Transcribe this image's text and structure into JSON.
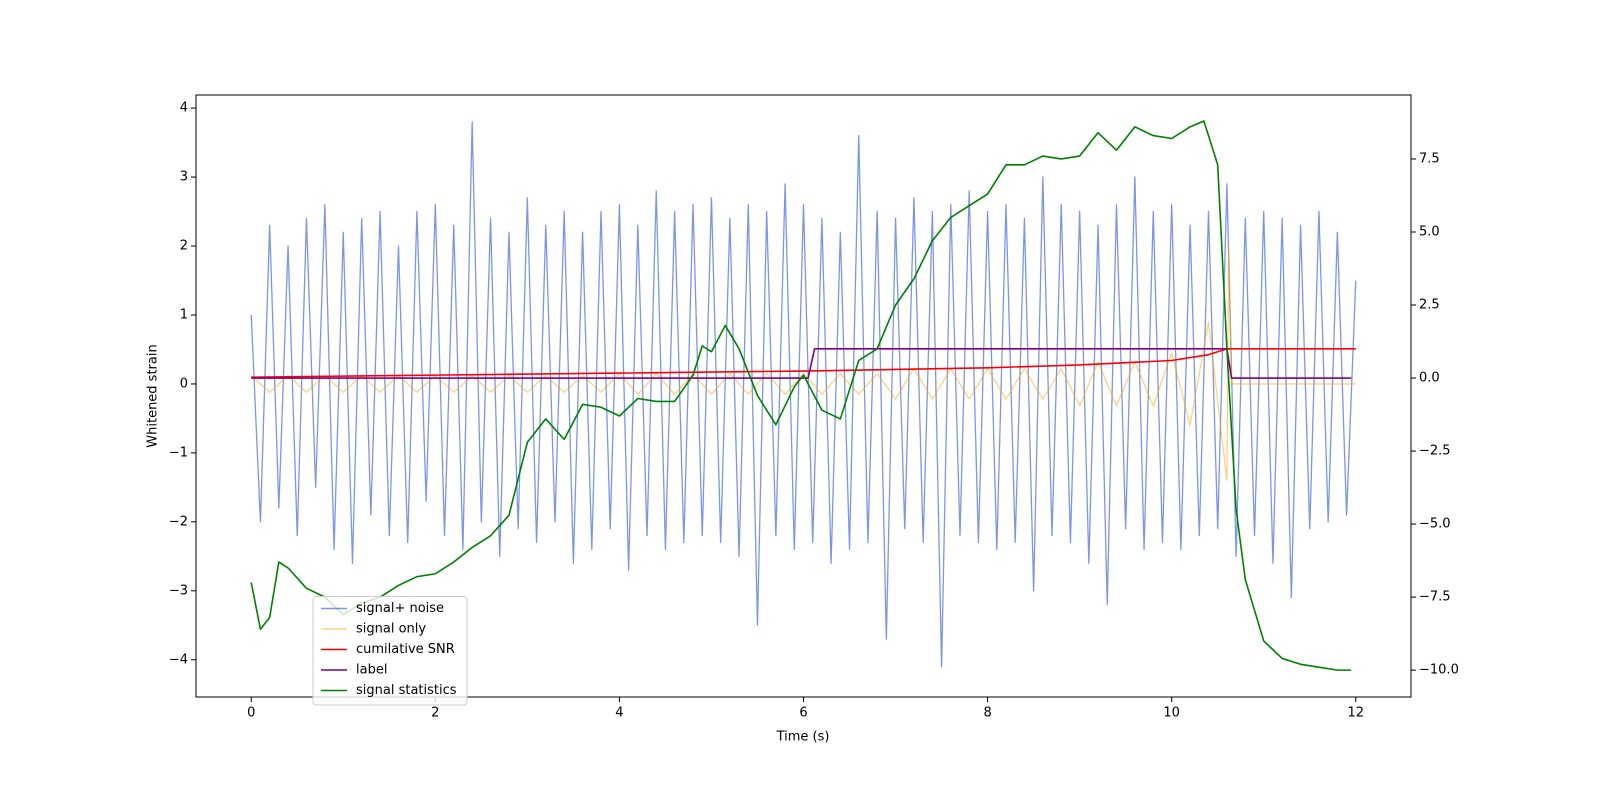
{
  "chart_data": {
    "type": "line",
    "xlabel": "Time (s)",
    "ylabel": "Whitened strain",
    "xlim": [
      -0.6,
      12.6
    ],
    "xticks": [
      0,
      2,
      4,
      6,
      8,
      10,
      12
    ],
    "ylim": [
      -4.54,
      4.19
    ],
    "yticks": [
      {
        "value": -4,
        "label": "−4"
      },
      {
        "value": -3,
        "label": "−3"
      },
      {
        "value": -2,
        "label": "−2"
      },
      {
        "value": -1,
        "label": "−1"
      },
      0,
      1,
      2,
      3,
      4
    ],
    "y2lim": [
      -10.92,
      9.69
    ],
    "y2ticks": [
      {
        "value": -10,
        "label": "−10.0"
      },
      {
        "value": -7.5,
        "label": "−7.5"
      },
      {
        "value": -5,
        "label": "−5.0"
      },
      {
        "value": -2.5,
        "label": "−2.5"
      },
      {
        "value": 0,
        "label": "0.0"
      },
      {
        "value": 2.5,
        "label": "2.5"
      },
      {
        "value": 5,
        "label": "5.0"
      },
      {
        "value": 7.5,
        "label": "7.5"
      }
    ],
    "legend": "lower left",
    "series": [
      {
        "name": "signal+ noise",
        "color": "#4169e1",
        "x": [
          0,
          0.1,
          0.2,
          0.3,
          0.4,
          0.5,
          0.6,
          0.7,
          0.8,
          0.9,
          1,
          1.1,
          1.2,
          1.3,
          1.4,
          1.5,
          1.6,
          1.7,
          1.8,
          1.9,
          2,
          2.1,
          2.2,
          2.3,
          2.4,
          2.5,
          2.6,
          2.7,
          2.8,
          2.9,
          3,
          3.1,
          3.2,
          3.3,
          3.4,
          3.5,
          3.6,
          3.7,
          3.8,
          3.9,
          4,
          4.1,
          4.2,
          4.3,
          4.4,
          4.5,
          4.6,
          4.7,
          4.8,
          4.9,
          5,
          5.1,
          5.2,
          5.3,
          5.4,
          5.5,
          5.6,
          5.7,
          5.8,
          5.9,
          6,
          6.1,
          6.2,
          6.3,
          6.4,
          6.5,
          6.6,
          6.7,
          6.8,
          6.9,
          7,
          7.1,
          7.2,
          7.3,
          7.4,
          7.5,
          7.6,
          7.7,
          7.8,
          7.9,
          8,
          8.1,
          8.2,
          8.3,
          8.4,
          8.5,
          8.6,
          8.7,
          8.8,
          8.9,
          9,
          9.1,
          9.2,
          9.3,
          9.4,
          9.5,
          9.6,
          9.7,
          9.8,
          9.9,
          10,
          10.1,
          10.2,
          10.3,
          10.4,
          10.5,
          10.6,
          10.7,
          10.8,
          10.9,
          11,
          11.1,
          11.2,
          11.3,
          11.4,
          11.5,
          11.6,
          11.7,
          11.8,
          11.9,
          12
        ],
        "values": [
          1.0,
          -2.0,
          2.3,
          -1.8,
          2.0,
          -2.2,
          2.4,
          -1.5,
          2.6,
          -2.4,
          2.2,
          -2.6,
          2.4,
          -1.9,
          2.5,
          -2.2,
          2.0,
          -2.3,
          2.5,
          -1.7,
          2.6,
          -2.2,
          2.3,
          -2.4,
          3.8,
          -2.0,
          2.4,
          -2.5,
          2.2,
          -2.1,
          2.7,
          -2.3,
          2.3,
          -2.0,
          2.5,
          -2.6,
          2.2,
          -2.4,
          2.5,
          -2.1,
          2.6,
          -2.7,
          2.3,
          -2.2,
          2.8,
          -2.4,
          2.5,
          -2.3,
          2.6,
          -2.2,
          2.7,
          -2.3,
          2.4,
          -2.5,
          2.6,
          -3.5,
          2.5,
          -2.2,
          2.9,
          -2.4,
          2.6,
          -2.3,
          2.4,
          -2.6,
          2.2,
          -2.4,
          3.6,
          -2.3,
          2.5,
          -3.7,
          2.4,
          -2.1,
          2.7,
          -2.3,
          2.5,
          -4.1,
          2.6,
          -2.2,
          2.8,
          -2.3,
          2.5,
          -2.4,
          2.6,
          -2.3,
          2.4,
          -3.0,
          3.0,
          -2.2,
          2.6,
          -2.3,
          2.5,
          -2.6,
          2.3,
          -3.2,
          2.6,
          -2.1,
          3.0,
          -2.4,
          2.5,
          -2.3,
          2.6,
          -2.4,
          2.3,
          -2.2,
          2.5,
          -2.1,
          2.9,
          -2.5,
          2.4,
          -2.2,
          2.5,
          -2.6,
          2.4,
          -3.1,
          2.3,
          -2.1,
          2.5,
          -2.0,
          2.2,
          -1.9,
          1.5
        ]
      },
      {
        "name": "signal only",
        "color": "#ffa500",
        "x": [
          0,
          0.2,
          0.4,
          0.6,
          0.8,
          1,
          1.2,
          1.4,
          1.6,
          1.8,
          2,
          2.2,
          2.4,
          2.6,
          2.8,
          3,
          3.2,
          3.4,
          3.6,
          3.8,
          4,
          4.2,
          4.4,
          4.6,
          4.8,
          5,
          5.2,
          5.4,
          5.6,
          5.8,
          6,
          6.2,
          6.4,
          6.6,
          6.8,
          7,
          7.2,
          7.4,
          7.6,
          7.8,
          8,
          8.2,
          8.4,
          8.6,
          8.8,
          9,
          9.2,
          9.4,
          9.6,
          9.8,
          10,
          10.2,
          10.4,
          10.6,
          10.62,
          10.65,
          12
        ],
        "values": [
          0.12,
          -0.12,
          0.12,
          -0.12,
          0.12,
          -0.12,
          0.12,
          -0.12,
          0.12,
          -0.12,
          0.12,
          -0.12,
          0.12,
          -0.12,
          0.12,
          -0.12,
          0.12,
          -0.12,
          0.12,
          -0.12,
          0.15,
          -0.15,
          0.15,
          -0.15,
          0.15,
          -0.15,
          0.15,
          -0.15,
          0.15,
          -0.15,
          0.15,
          -0.15,
          0.15,
          -0.15,
          0.15,
          -0.22,
          0.22,
          -0.22,
          0.22,
          -0.22,
          0.22,
          -0.22,
          0.22,
          -0.22,
          0.22,
          -0.32,
          0.32,
          -0.32,
          0.32,
          -0.32,
          0.45,
          -0.6,
          0.9,
          -1.4,
          2.0,
          0,
          0
        ]
      },
      {
        "name": "cumilative SNR",
        "color": "#ff0000",
        "axis": "y2",
        "x": [
          0,
          2,
          4,
          6,
          8,
          9,
          10,
          10.4,
          10.6,
          10.65,
          12
        ],
        "values": [
          0.03,
          0.1,
          0.17,
          0.24,
          0.35,
          0.45,
          0.6,
          0.8,
          1.0,
          1.0,
          1.0
        ]
      },
      {
        "name": "label",
        "color": "#800080",
        "axis": "y2",
        "x": [
          0,
          6.05,
          6.12,
          10.6,
          10.65,
          11.95
        ],
        "values": [
          0,
          0,
          1,
          1,
          0,
          0
        ]
      },
      {
        "name": "signal statistics",
        "color": "#008000",
        "axis": "y2",
        "x": [
          0,
          0.1,
          0.2,
          0.3,
          0.4,
          0.6,
          0.8,
          1.0,
          1.2,
          1.4,
          1.6,
          1.8,
          2.0,
          2.2,
          2.4,
          2.6,
          2.8,
          3.0,
          3.2,
          3.4,
          3.6,
          3.8,
          4.0,
          4.2,
          4.4,
          4.6,
          4.8,
          4.9,
          5.0,
          5.15,
          5.3,
          5.5,
          5.7,
          5.9,
          6.0,
          6.2,
          6.4,
          6.6,
          6.8,
          7.0,
          7.2,
          7.4,
          7.6,
          7.8,
          8.0,
          8.2,
          8.4,
          8.6,
          8.8,
          9.0,
          9.2,
          9.4,
          9.6,
          9.8,
          10.0,
          10.2,
          10.35,
          10.5,
          10.6,
          10.7,
          10.8,
          11.0,
          11.2,
          11.4,
          11.6,
          11.8,
          11.95
        ],
        "values": [
          -7.0,
          -8.6,
          -8.2,
          -6.3,
          -6.5,
          -7.2,
          -7.5,
          -8.1,
          -7.7,
          -7.5,
          -7.1,
          -6.8,
          -6.7,
          -6.3,
          -5.8,
          -5.4,
          -4.7,
          -2.2,
          -1.4,
          -2.1,
          -0.9,
          -1.0,
          -1.3,
          -0.7,
          -0.8,
          -0.8,
          0.1,
          1.1,
          0.9,
          1.8,
          1.0,
          -0.6,
          -1.6,
          -0.3,
          0.1,
          -1.1,
          -1.4,
          0.6,
          1.0,
          2.5,
          3.4,
          4.7,
          5.5,
          5.9,
          6.3,
          7.3,
          7.3,
          7.6,
          7.5,
          7.6,
          8.4,
          7.8,
          8.6,
          8.3,
          8.2,
          8.6,
          8.8,
          7.3,
          1.0,
          -4.5,
          -6.9,
          -9.0,
          -9.6,
          -9.8,
          -9.9,
          -10.0,
          -10.0
        ]
      }
    ]
  }
}
